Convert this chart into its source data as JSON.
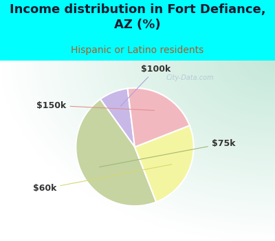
{
  "title": "Income distribution in Fort Defiance,\nAZ (%)",
  "subtitle": "Hispanic or Latino residents",
  "title_fontsize": 13,
  "subtitle_fontsize": 10,
  "title_color": "#1a1a2e",
  "subtitle_color": "#b05a28",
  "background_cyan": "#00ffff",
  "slices": [
    {
      "label": "$100k",
      "value": 8,
      "color": "#c8b8e8"
    },
    {
      "label": "$75k",
      "value": 46,
      "color": "#c5d4a0"
    },
    {
      "label": "$60k",
      "value": 25,
      "color": "#f4f5a0"
    },
    {
      "label": "$150k",
      "value": 21,
      "color": "#f2b8c0"
    }
  ],
  "label_fontsize": 9,
  "label_color": "#333333",
  "startangle": 97,
  "watermark": "City-Data.com"
}
